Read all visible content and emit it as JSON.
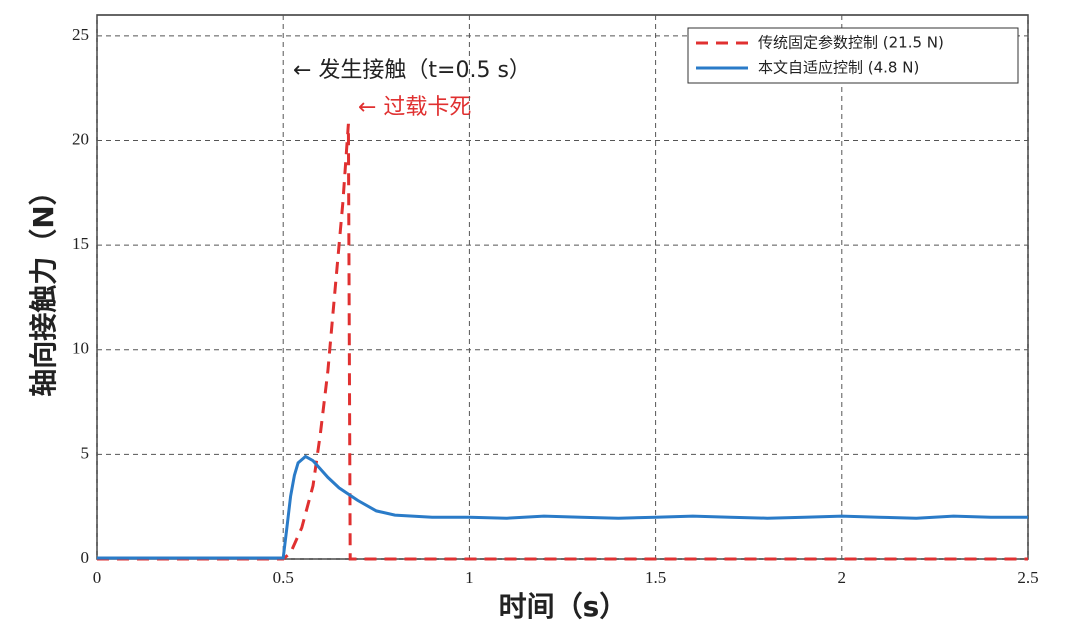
{
  "chart_data": {
    "type": "line",
    "xlabel": "时间（s）",
    "ylabel": "轴向接触力（N）",
    "annotations": [
      "← 发生接触（t=0.5 s）",
      "← 过载卡死"
    ],
    "xlim": [
      0,
      2.5
    ],
    "xticks": [
      0,
      0.5,
      1,
      1.5,
      2,
      2.5
    ],
    "ylim": [
      0,
      26
    ],
    "yticks": [
      0,
      5,
      10,
      15,
      20,
      25
    ],
    "grid": true,
    "legend": "upper right",
    "series": [
      {
        "name": "传统固定参数控制 (21.5 N)",
        "color": "#e03030",
        "dash": true,
        "x": [
          0,
          0.5,
          0.52,
          0.55,
          0.58,
          0.6,
          0.62,
          0.64,
          0.66,
          0.675,
          0.68,
          0.69,
          2.5
        ],
        "values": [
          0,
          0,
          0.3,
          1.5,
          3.5,
          6,
          9,
          13,
          17,
          20.8,
          0,
          0,
          0
        ]
      },
      {
        "name": "本文自适应控制 (4.8 N)",
        "color": "#2a7bc8",
        "dash": false,
        "x": [
          0,
          0.5,
          0.51,
          0.52,
          0.53,
          0.54,
          0.56,
          0.58,
          0.6,
          0.62,
          0.65,
          0.7,
          0.75,
          0.8,
          0.9,
          1.0,
          1.1,
          1.2,
          1.3,
          1.4,
          1.5,
          1.6,
          1.7,
          1.8,
          1.9,
          2.0,
          2.1,
          2.2,
          2.3,
          2.4,
          2.5
        ],
        "values": [
          0.05,
          0.05,
          1.5,
          3,
          4,
          4.6,
          4.9,
          4.7,
          4.3,
          3.9,
          3.4,
          2.8,
          2.3,
          2.1,
          2.0,
          2.0,
          1.95,
          2.05,
          2.0,
          1.95,
          2.0,
          2.05,
          2.0,
          1.95,
          2.0,
          2.05,
          2.0,
          1.95,
          2.05,
          2.0,
          2.0
        ]
      }
    ]
  }
}
